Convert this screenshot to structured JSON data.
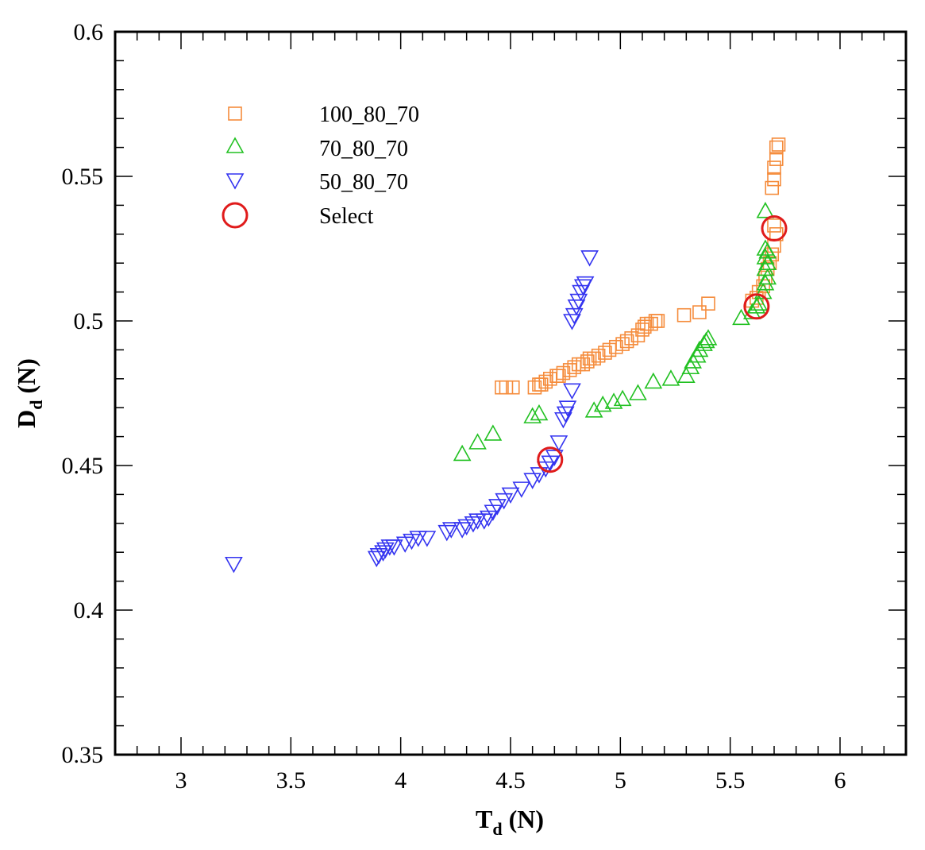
{
  "chart_data": {
    "type": "scatter",
    "title": "",
    "xlabel": {
      "main": "T",
      "sub": "d",
      "unit": " (N)"
    },
    "ylabel": {
      "main": "D",
      "sub": "d",
      "unit": " (N)"
    },
    "xlim": [
      2.7,
      6.3
    ],
    "ylim": [
      0.35,
      0.6
    ],
    "xticks": [
      3,
      3.5,
      4,
      4.5,
      5,
      5.5,
      6
    ],
    "xtick_labels": [
      "3",
      "3.5",
      "4",
      "4.5",
      "5",
      "5.5",
      "6"
    ],
    "yticks": [
      0.35,
      0.4,
      0.45,
      0.5,
      0.55,
      0.6
    ],
    "ytick_labels": [
      "0.35",
      "0.4",
      "0.45",
      "0.5",
      "0.55",
      "0.6"
    ],
    "grid": false,
    "legend_position": "top-left",
    "series": [
      {
        "name": "100_80_70",
        "marker": "square",
        "color": "#f58c3c",
        "points": [
          [
            4.46,
            0.477
          ],
          [
            4.48,
            0.477
          ],
          [
            4.51,
            0.477
          ],
          [
            4.61,
            0.477
          ],
          [
            4.63,
            0.478
          ],
          [
            4.64,
            0.478
          ],
          [
            4.66,
            0.479
          ],
          [
            4.68,
            0.48
          ],
          [
            4.71,
            0.481
          ],
          [
            4.72,
            0.481
          ],
          [
            4.74,
            0.482
          ],
          [
            4.77,
            0.483
          ],
          [
            4.79,
            0.484
          ],
          [
            4.81,
            0.485
          ],
          [
            4.83,
            0.485
          ],
          [
            4.85,
            0.486
          ],
          [
            4.86,
            0.487
          ],
          [
            4.88,
            0.487
          ],
          [
            4.9,
            0.488
          ],
          [
            4.93,
            0.489
          ],
          [
            4.95,
            0.49
          ],
          [
            4.98,
            0.491
          ],
          [
            5.01,
            0.492
          ],
          [
            5.03,
            0.493
          ],
          [
            5.05,
            0.494
          ],
          [
            5.08,
            0.495
          ],
          [
            5.1,
            0.497
          ],
          [
            5.11,
            0.498
          ],
          [
            5.12,
            0.499
          ],
          [
            5.14,
            0.499
          ],
          [
            5.16,
            0.5
          ],
          [
            5.17,
            0.5
          ],
          [
            5.29,
            0.502
          ],
          [
            5.36,
            0.503
          ],
          [
            5.4,
            0.506
          ],
          [
            5.6,
            0.507
          ],
          [
            5.62,
            0.508
          ],
          [
            5.63,
            0.51
          ],
          [
            5.65,
            0.512
          ],
          [
            5.66,
            0.515
          ],
          [
            5.67,
            0.518
          ],
          [
            5.68,
            0.52
          ],
          [
            5.69,
            0.523
          ],
          [
            5.7,
            0.526
          ],
          [
            5.71,
            0.53
          ],
          [
            5.7,
            0.533
          ],
          [
            5.69,
            0.546
          ],
          [
            5.7,
            0.549
          ],
          [
            5.7,
            0.553
          ],
          [
            5.71,
            0.556
          ],
          [
            5.71,
            0.56
          ],
          [
            5.72,
            0.561
          ]
        ]
      },
      {
        "name": "70_80_70",
        "marker": "triangle-up",
        "color": "#22c122",
        "points": [
          [
            4.28,
            0.454
          ],
          [
            4.35,
            0.458
          ],
          [
            4.42,
            0.461
          ],
          [
            4.6,
            0.467
          ],
          [
            4.63,
            0.468
          ],
          [
            4.88,
            0.469
          ],
          [
            4.92,
            0.471
          ],
          [
            4.97,
            0.472
          ],
          [
            5.01,
            0.473
          ],
          [
            5.08,
            0.475
          ],
          [
            5.15,
            0.479
          ],
          [
            5.23,
            0.48
          ],
          [
            5.3,
            0.481
          ],
          [
            5.32,
            0.484
          ],
          [
            5.33,
            0.486
          ],
          [
            5.35,
            0.488
          ],
          [
            5.36,
            0.49
          ],
          [
            5.38,
            0.492
          ],
          [
            5.39,
            0.493
          ],
          [
            5.4,
            0.494
          ],
          [
            5.55,
            0.501
          ],
          [
            5.6,
            0.503
          ],
          [
            5.62,
            0.505
          ],
          [
            5.63,
            0.506
          ],
          [
            5.65,
            0.51
          ],
          [
            5.66,
            0.513
          ],
          [
            5.67,
            0.515
          ],
          [
            5.66,
            0.518
          ],
          [
            5.67,
            0.52
          ],
          [
            5.66,
            0.522
          ],
          [
            5.67,
            0.524
          ],
          [
            5.66,
            0.525
          ],
          [
            5.66,
            0.538
          ]
        ]
      },
      {
        "name": "50_80_70",
        "marker": "triangle-down",
        "color": "#3434f0",
        "points": [
          [
            3.24,
            0.416
          ],
          [
            3.89,
            0.418
          ],
          [
            3.9,
            0.419
          ],
          [
            3.92,
            0.42
          ],
          [
            3.93,
            0.421
          ],
          [
            3.95,
            0.422
          ],
          [
            3.97,
            0.422
          ],
          [
            4.02,
            0.423
          ],
          [
            4.05,
            0.424
          ],
          [
            4.08,
            0.425
          ],
          [
            4.12,
            0.425
          ],
          [
            4.21,
            0.427
          ],
          [
            4.23,
            0.428
          ],
          [
            4.28,
            0.428
          ],
          [
            4.3,
            0.429
          ],
          [
            4.33,
            0.43
          ],
          [
            4.35,
            0.431
          ],
          [
            4.38,
            0.431
          ],
          [
            4.4,
            0.432
          ],
          [
            4.42,
            0.434
          ],
          [
            4.44,
            0.436
          ],
          [
            4.47,
            0.438
          ],
          [
            4.5,
            0.44
          ],
          [
            4.55,
            0.442
          ],
          [
            4.6,
            0.445
          ],
          [
            4.63,
            0.447
          ],
          [
            4.66,
            0.449
          ],
          [
            4.68,
            0.451
          ],
          [
            4.7,
            0.453
          ],
          [
            4.72,
            0.458
          ],
          [
            4.74,
            0.466
          ],
          [
            4.75,
            0.468
          ],
          [
            4.76,
            0.47
          ],
          [
            4.78,
            0.476
          ],
          [
            4.78,
            0.5
          ],
          [
            4.79,
            0.502
          ],
          [
            4.8,
            0.505
          ],
          [
            4.81,
            0.507
          ],
          [
            4.82,
            0.51
          ],
          [
            4.83,
            0.512
          ],
          [
            4.84,
            0.513
          ],
          [
            4.86,
            0.522
          ]
        ]
      },
      {
        "name": "Select",
        "marker": "circle",
        "color": "#e01b1b",
        "points": [
          [
            4.68,
            0.452
          ],
          [
            5.62,
            0.505
          ],
          [
            5.7,
            0.532
          ]
        ]
      }
    ]
  }
}
